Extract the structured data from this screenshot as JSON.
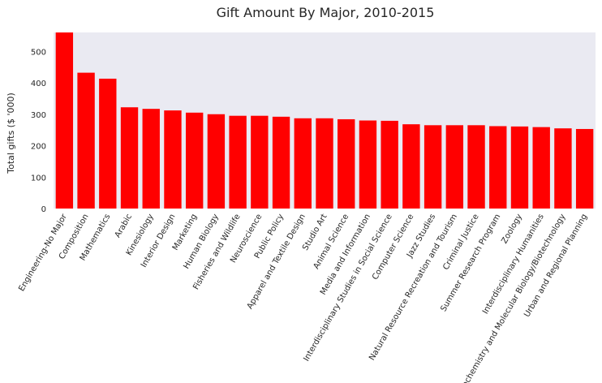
{
  "chart_data": {
    "type": "bar",
    "title": "Gift Amount By Major, 2010-2015",
    "xlabel": "",
    "ylabel": "Total gifts ($ '000)",
    "ylim": [
      0,
      560
    ],
    "yticks": [
      0,
      100,
      200,
      300,
      400,
      500
    ],
    "grid": false,
    "bar_color": "#ff0000",
    "plot_background": "#eaeaf2",
    "categories": [
      "Engineering-No Major",
      "Composition",
      "Mathematics",
      "Arabic",
      "Kinesiology",
      "Interior Design",
      "Marketing",
      "Human Biology",
      "Fisheries and Wildlife",
      "Neuroscience",
      "Public Policy",
      "Apparel and Textile Design",
      "Studio Art",
      "Animal Science",
      "Media and Information",
      "Interdisciplinary Studies in Social Science",
      "Computer Science",
      "Jazz Studies",
      "Natural Resource Recreation and Tourism",
      "Criminal Justice",
      "Summer Research Program",
      "Zoology",
      "Interdisciplinary Humanities",
      "Biochemistry and Molecular Biology/Biotechnology",
      "Urban and Regional Planning"
    ],
    "values": [
      560,
      432,
      413,
      322,
      317,
      312,
      305,
      300,
      295,
      295,
      292,
      287,
      287,
      284,
      280,
      279,
      268,
      265,
      265,
      265,
      262,
      261,
      259,
      255,
      253
    ]
  }
}
